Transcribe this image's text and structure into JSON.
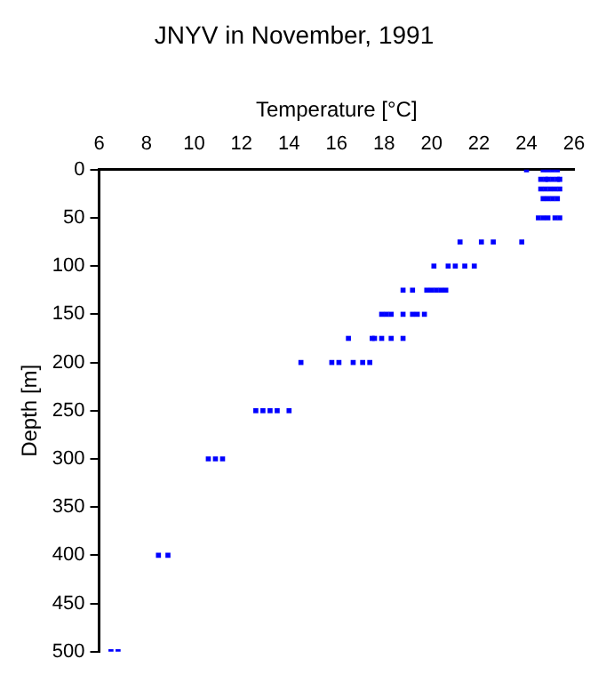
{
  "chart_data": {
    "type": "scatter",
    "title": "JNYV in November, 1991",
    "xlabel": "Temperature [°C]",
    "ylabel": "Depth [m]",
    "xlim": [
      6,
      26
    ],
    "xticks": [
      6,
      8,
      10,
      12,
      14,
      16,
      18,
      20,
      22,
      24,
      26
    ],
    "ylim": [
      500,
      0
    ],
    "yticks": [
      0,
      50,
      100,
      150,
      200,
      250,
      300,
      350,
      400,
      450,
      500
    ],
    "grid": false,
    "legend": false,
    "marker": "square",
    "series": [
      {
        "color": "#0000ff",
        "x": [
          24.0,
          24.7,
          24.9,
          25.1,
          25.3,
          24.6,
          24.8,
          24.9,
          25.1,
          25.3,
          25.4,
          24.6,
          24.8,
          25.0,
          25.2,
          25.4,
          24.7,
          24.9,
          25.1,
          25.3,
          24.5,
          24.7,
          24.9,
          25.2,
          25.4,
          21.2,
          22.1,
          22.6,
          23.8,
          20.1,
          20.7,
          21.0,
          21.4,
          21.8,
          18.8,
          19.2,
          19.8,
          20.0,
          20.2,
          20.4,
          20.6,
          17.9,
          18.1,
          18.3,
          18.8,
          19.2,
          19.4,
          19.7,
          16.5,
          17.5,
          17.6,
          17.9,
          18.3,
          18.8,
          14.5,
          15.8,
          16.1,
          16.7,
          17.1,
          17.4,
          12.6,
          12.9,
          13.2,
          13.5,
          14.0,
          10.6,
          10.9,
          11.2,
          8.5,
          8.9,
          6.5,
          6.8
        ],
        "values": [
          0,
          0,
          0,
          0,
          0,
          10,
          10,
          10,
          10,
          10,
          10,
          20,
          20,
          20,
          20,
          20,
          30,
          30,
          30,
          30,
          50,
          50,
          50,
          50,
          50,
          75,
          75,
          75,
          75,
          100,
          100,
          100,
          100,
          100,
          125,
          125,
          125,
          125,
          125,
          125,
          125,
          150,
          150,
          150,
          150,
          150,
          150,
          150,
          175,
          175,
          175,
          175,
          175,
          175,
          200,
          200,
          200,
          200,
          200,
          200,
          250,
          250,
          250,
          250,
          250,
          300,
          300,
          300,
          400,
          400,
          500,
          500
        ]
      }
    ]
  }
}
